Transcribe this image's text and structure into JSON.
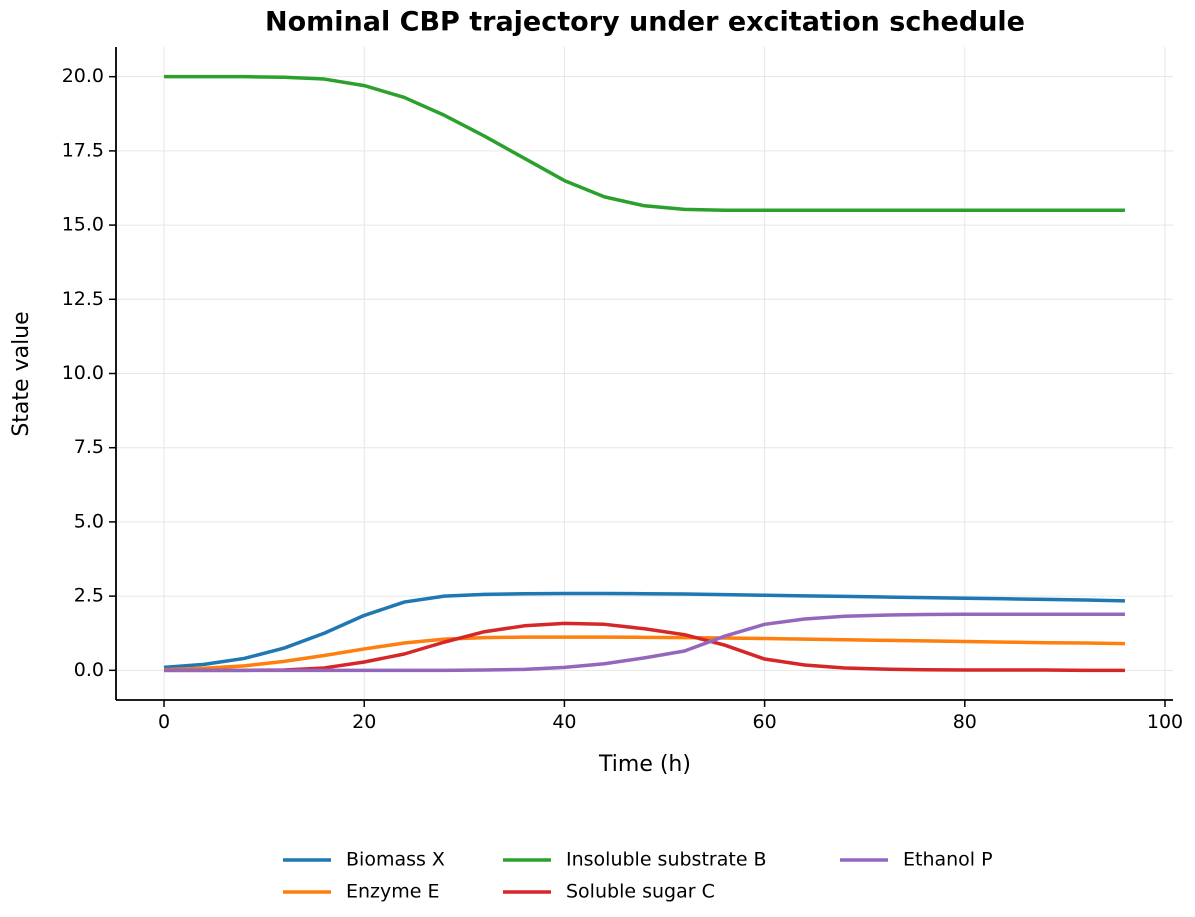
{
  "chart_data": {
    "type": "line",
    "title": "Nominal CBP trajectory under excitation schedule",
    "x_label": "Time (h)",
    "y_label": "State value",
    "x": [
      0,
      4,
      8,
      12,
      16,
      20,
      24,
      28,
      32,
      36,
      40,
      44,
      48,
      52,
      56,
      60,
      64,
      68,
      72,
      76,
      80,
      84,
      88,
      92,
      96
    ],
    "series": [
      {
        "name": "Biomass X",
        "color": "#1f77b4",
        "values": [
          0.1,
          0.2,
          0.4,
          0.75,
          1.25,
          1.85,
          2.3,
          2.5,
          2.56,
          2.58,
          2.59,
          2.59,
          2.58,
          2.57,
          2.55,
          2.53,
          2.51,
          2.49,
          2.47,
          2.45,
          2.43,
          2.41,
          2.39,
          2.37,
          2.34
        ]
      },
      {
        "name": "Enzyme E",
        "color": "#ff7f0e",
        "values": [
          0.02,
          0.07,
          0.15,
          0.3,
          0.5,
          0.72,
          0.92,
          1.05,
          1.1,
          1.12,
          1.12,
          1.12,
          1.11,
          1.1,
          1.09,
          1.07,
          1.05,
          1.03,
          1.01,
          0.99,
          0.97,
          0.95,
          0.93,
          0.92,
          0.9
        ]
      },
      {
        "name": "Insoluble substrate B",
        "color": "#2ca02c",
        "values": [
          20,
          20,
          20,
          19.98,
          19.92,
          19.7,
          19.3,
          18.7,
          18.0,
          17.25,
          16.5,
          15.95,
          15.65,
          15.53,
          15.5,
          15.5,
          15.5,
          15.5,
          15.5,
          15.5,
          15.5,
          15.5,
          15.5,
          15.5,
          15.5
        ]
      },
      {
        "name": "Soluble sugar C",
        "color": "#d62728",
        "values": [
          0,
          0,
          0,
          0.01,
          0.08,
          0.28,
          0.55,
          0.95,
          1.3,
          1.5,
          1.58,
          1.55,
          1.4,
          1.2,
          0.85,
          0.38,
          0.18,
          0.08,
          0.04,
          0.02,
          0.01,
          0.01,
          0.01,
          0,
          0
        ]
      },
      {
        "name": "Ethanol P",
        "color": "#9467bd",
        "values": [
          0,
          0,
          0,
          0,
          0,
          0,
          0,
          0,
          0.01,
          0.03,
          0.1,
          0.22,
          0.42,
          0.65,
          1.15,
          1.55,
          1.73,
          1.82,
          1.86,
          1.88,
          1.89,
          1.89,
          1.89,
          1.89,
          1.89
        ]
      }
    ],
    "xlim": [
      -4.8,
      100.8
    ],
    "ylim": [
      -1.0,
      21.0
    ],
    "xticks": [
      0,
      20,
      40,
      60,
      80,
      100
    ],
    "yticks": [
      {
        "value": 0,
        "label": "0.0"
      },
      {
        "value": 2.5,
        "label": "2.5"
      },
      {
        "value": 5,
        "label": "5.0"
      },
      {
        "value": 7.5,
        "label": "7.5"
      },
      {
        "value": 10,
        "label": "10.0"
      },
      {
        "value": 12.5,
        "label": "12.5"
      },
      {
        "value": 15,
        "label": "15.0"
      },
      {
        "value": 17.5,
        "label": "17.5"
      },
      {
        "value": 20,
        "label": "20.0"
      }
    ],
    "grid": true,
    "legend": "bottom"
  }
}
